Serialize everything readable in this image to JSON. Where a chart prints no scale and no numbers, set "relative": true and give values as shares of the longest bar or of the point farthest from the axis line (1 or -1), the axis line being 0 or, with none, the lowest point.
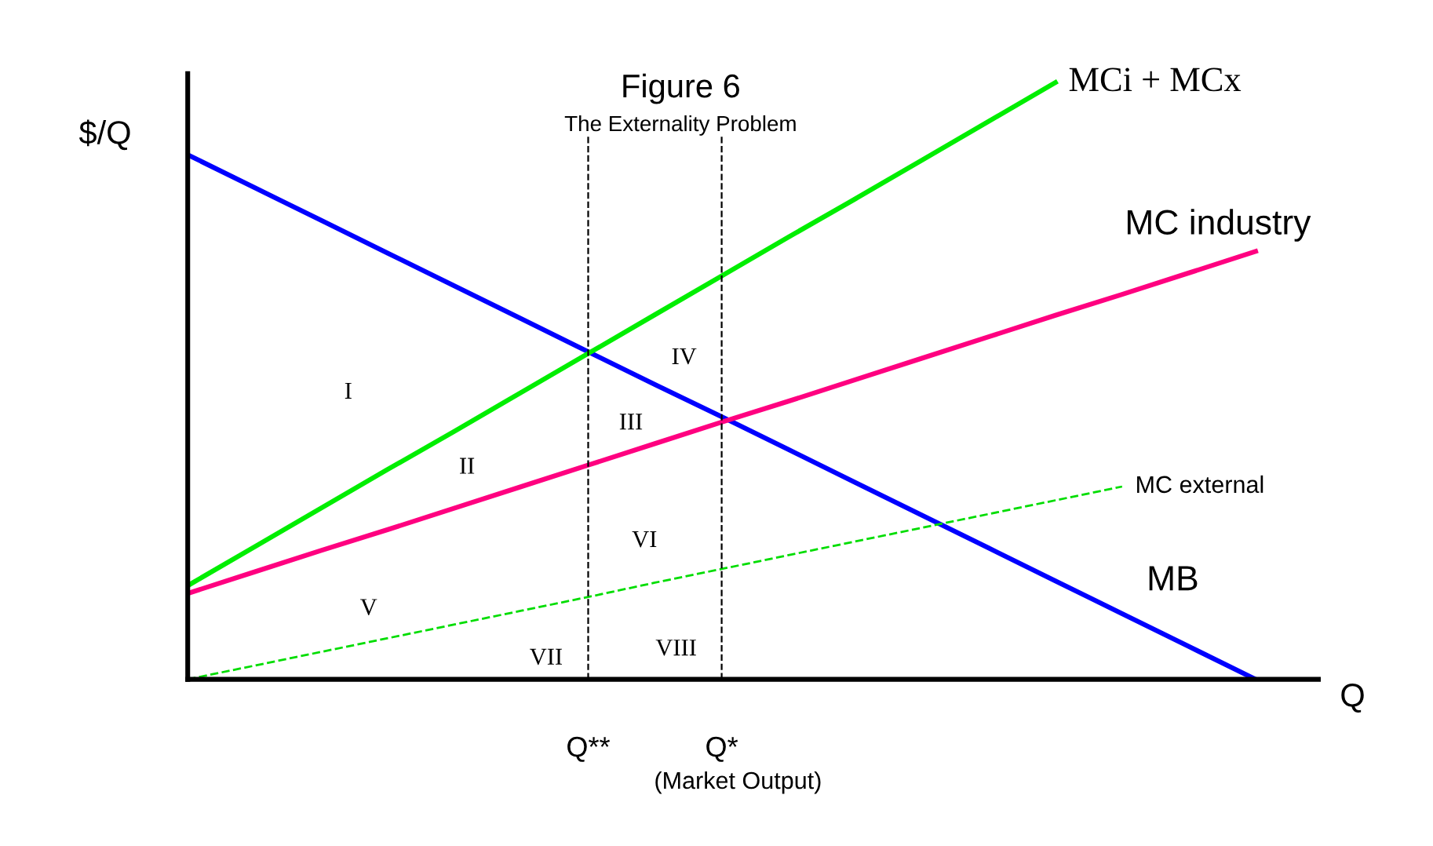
{
  "chart_data": {
    "type": "line",
    "title": "Figure 6",
    "subtitle": "The Externality Problem",
    "ylabel": "$/Q",
    "xlabel": "Q",
    "relative": true,
    "categories": [
      null,
      null,
      null,
      null,
      null,
      null,
      "Q**",
      null,
      "Q*",
      null,
      null,
      null,
      null,
      null,
      null,
      null,
      null
    ],
    "series": [
      {
        "name": "MB",
        "color": "#0000ff",
        "values": [
          0.879,
          0.824,
          0.769,
          0.714,
          0.659,
          0.604,
          0.549,
          0.494,
          0.44,
          0.385,
          0.33,
          0.275,
          0.22,
          0.165,
          0.11,
          0.055,
          0
        ]
      },
      {
        "name": "MCi + MCx",
        "color": "#00ee00",
        "values": [
          0.157,
          0.222,
          0.287,
          0.352,
          0.416,
          0.481,
          0.546,
          0.611,
          0.676,
          0.741,
          0.805,
          0.87,
          0.935,
          1.0,
          null,
          null,
          null
        ]
      },
      {
        "name": "MC industry",
        "color": "#ff0080",
        "values": [
          0.144,
          0.18,
          0.216,
          0.251,
          0.287,
          0.323,
          0.359,
          0.395,
          0.431,
          0.466,
          0.502,
          0.538,
          0.574,
          0.61,
          0.645,
          0.681,
          0.717
        ]
      },
      {
        "name": "MC external",
        "color": "#00dd00",
        "line_style": "dashed",
        "values": [
          0,
          0.023,
          0.046,
          0.069,
          0.092,
          0.115,
          0.138,
          0.162,
          0.185,
          0.208,
          0.231,
          0.254,
          0.277,
          0.3,
          0.323,
          null,
          null
        ]
      }
    ],
    "ref_lines": [
      {
        "axis": "x",
        "value": "Q**",
        "color": "#000000",
        "line_style": "dashed"
      },
      {
        "axis": "x",
        "value": "Q*",
        "color": "#000000",
        "line_style": "dashed"
      }
    ],
    "annotations": [
      "I",
      "II",
      "III",
      "IV",
      "V",
      "VI",
      "VII",
      "VIII",
      "(Market Output)"
    ],
    "grid": false,
    "legend": false
  }
}
